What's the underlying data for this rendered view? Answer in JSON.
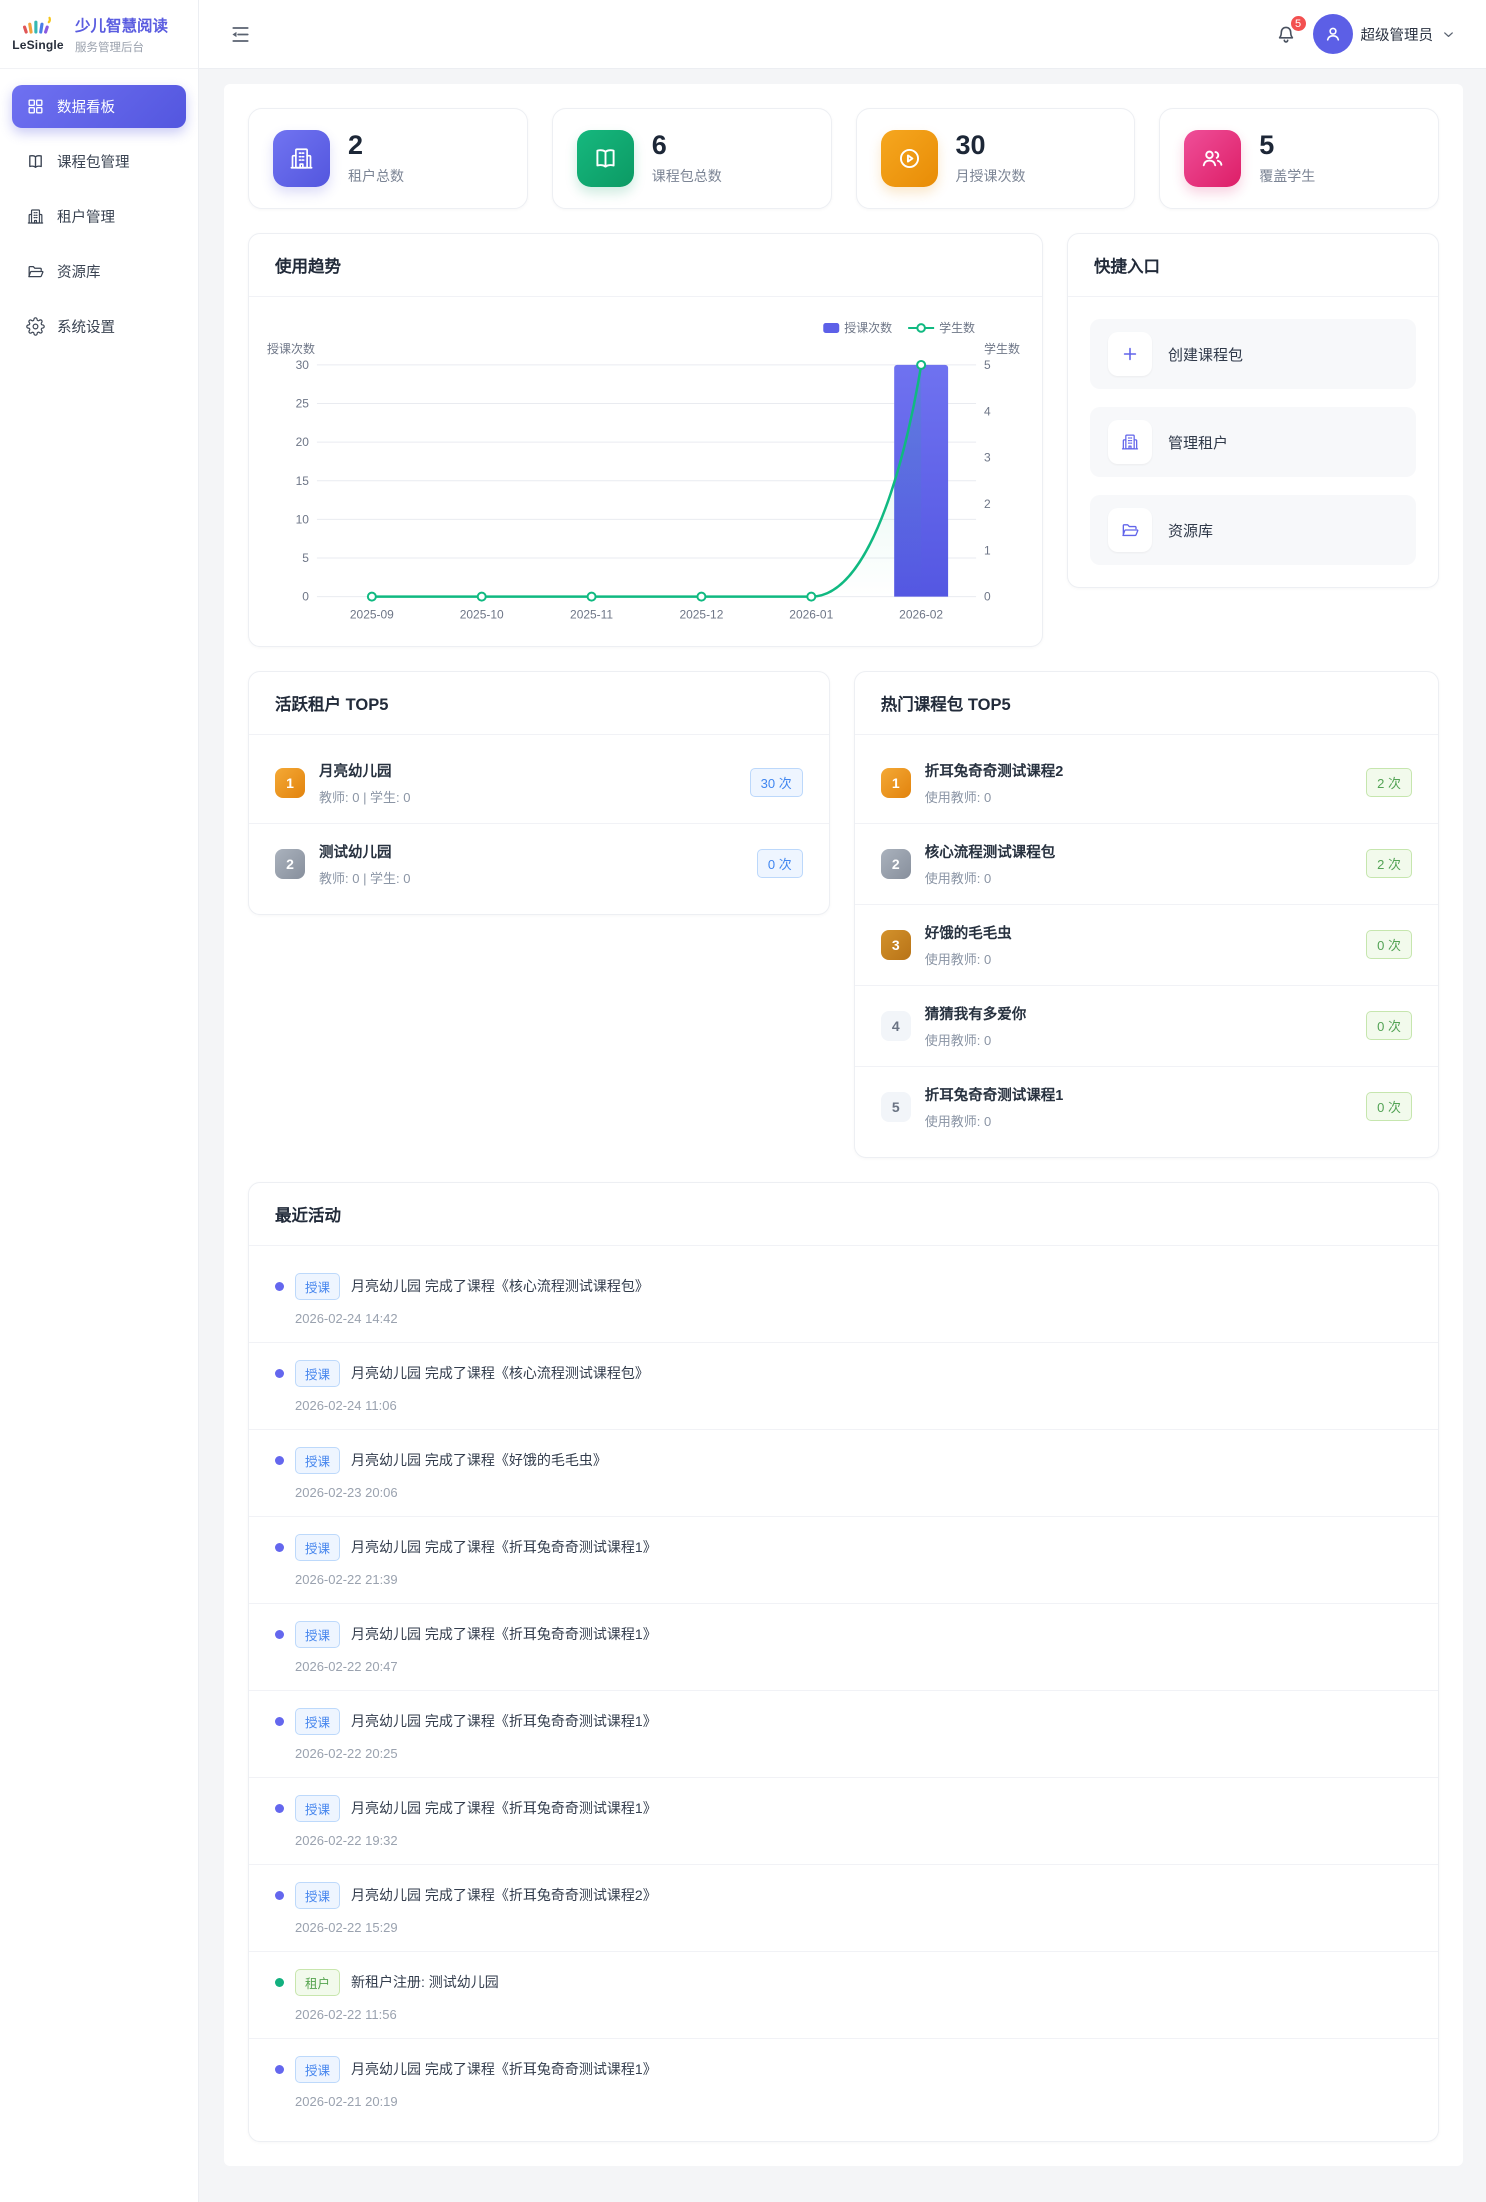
{
  "brand": {
    "logo_text": "LeSingle",
    "title": "少儿智慧阅读",
    "subtitle": "服务管理后台"
  },
  "sidebar": {
    "items": [
      {
        "id": "dashboard",
        "label": "数据看板",
        "icon": "dashboard-icon",
        "active": true
      },
      {
        "id": "packages",
        "label": "课程包管理",
        "icon": "book-icon",
        "active": false
      },
      {
        "id": "tenants",
        "label": "租户管理",
        "icon": "building-icon",
        "active": false
      },
      {
        "id": "resources",
        "label": "资源库",
        "icon": "folder-icon",
        "active": false
      },
      {
        "id": "settings",
        "label": "系统设置",
        "icon": "gear-icon",
        "active": false
      }
    ]
  },
  "header": {
    "notification_count": "5",
    "user_name": "超级管理员"
  },
  "stats": [
    {
      "value": "2",
      "label": "租户总数",
      "icon": "building-icon",
      "gradient": [
        "#7174f1",
        "#5356de"
      ]
    },
    {
      "value": "6",
      "label": "课程包总数",
      "icon": "book-icon",
      "gradient": [
        "#16b87e",
        "#0c9a64"
      ]
    },
    {
      "value": "30",
      "label": "月授课次数",
      "icon": "play-circle-icon",
      "gradient": [
        "#f6a71f",
        "#e88c06"
      ]
    },
    {
      "value": "5",
      "label": "覆盖学生",
      "icon": "students-icon",
      "gradient": [
        "#ef4f99",
        "#dd1e67"
      ]
    }
  ],
  "usage_trend": {
    "title": "使用趋势"
  },
  "chart_data": {
    "type": "combo",
    "categories": [
      "2025-09",
      "2025-10",
      "2025-11",
      "2025-12",
      "2026-01",
      "2026-02"
    ],
    "series": [
      {
        "name": "授课次数",
        "type": "bar",
        "values": [
          0,
          0,
          0,
          0,
          0,
          30
        ],
        "color": "#5d60e8",
        "y_axis": "left"
      },
      {
        "name": "学生数",
        "type": "line",
        "values": [
          0,
          0,
          0,
          0,
          0,
          5
        ],
        "color": "#10b981",
        "y_axis": "right"
      }
    ],
    "y_left": {
      "name": "授课次数",
      "min": 0,
      "max": 30,
      "step": 5
    },
    "y_right": {
      "name": "学生数",
      "min": 0,
      "max": 5,
      "step": 1
    },
    "legend_position": "top-right",
    "grid": "horizontal"
  },
  "quick_links": {
    "title": "快捷入口",
    "items": [
      {
        "label": "创建课程包",
        "icon": "plus-icon"
      },
      {
        "label": "管理租户",
        "icon": "building-icon"
      },
      {
        "label": "资源库",
        "icon": "folder-icon"
      }
    ]
  },
  "active_tenants": {
    "title": "活跃租户 TOP5",
    "items": [
      {
        "rank": "1",
        "name": "月亮幼儿园",
        "meta": "教师: 0 | 学生: 0",
        "count": "30 次"
      },
      {
        "rank": "2",
        "name": "测试幼儿园",
        "meta": "教师: 0 | 学生: 0",
        "count": "0 次"
      }
    ]
  },
  "hot_packages": {
    "title": "热门课程包 TOP5",
    "items": [
      {
        "rank": "1",
        "name": "折耳兔奇奇测试课程2",
        "meta": "使用教师: 0",
        "count": "2 次"
      },
      {
        "rank": "2",
        "name": "核心流程测试课程包",
        "meta": "使用教师: 0",
        "count": "2 次"
      },
      {
        "rank": "3",
        "name": "好饿的毛毛虫",
        "meta": "使用教师: 0",
        "count": "0 次"
      },
      {
        "rank": "4",
        "name": "猜猜我有多爱你",
        "meta": "使用教师: 0",
        "count": "0 次"
      },
      {
        "rank": "5",
        "name": "折耳兔奇奇测试课程1",
        "meta": "使用教师: 0",
        "count": "0 次"
      }
    ]
  },
  "recent_activities": {
    "title": "最近活动",
    "items": [
      {
        "tag": "授课",
        "type": "course",
        "text": "月亮幼儿园 完成了课程《核心流程测试课程包》",
        "time": "2026-02-24 14:42"
      },
      {
        "tag": "授课",
        "type": "course",
        "text": "月亮幼儿园 完成了课程《核心流程测试课程包》",
        "time": "2026-02-24 11:06"
      },
      {
        "tag": "授课",
        "type": "course",
        "text": "月亮幼儿园 完成了课程《好饿的毛毛虫》",
        "time": "2026-02-23 20:06"
      },
      {
        "tag": "授课",
        "type": "course",
        "text": "月亮幼儿园 完成了课程《折耳兔奇奇测试课程1》",
        "time": "2026-02-22 21:39"
      },
      {
        "tag": "授课",
        "type": "course",
        "text": "月亮幼儿园 完成了课程《折耳兔奇奇测试课程1》",
        "time": "2026-02-22 20:47"
      },
      {
        "tag": "授课",
        "type": "course",
        "text": "月亮幼儿园 完成了课程《折耳兔奇奇测试课程1》",
        "time": "2026-02-22 20:25"
      },
      {
        "tag": "授课",
        "type": "course",
        "text": "月亮幼儿园 完成了课程《折耳兔奇奇测试课程1》",
        "time": "2026-02-22 19:32"
      },
      {
        "tag": "授课",
        "type": "course",
        "text": "月亮幼儿园 完成了课程《折耳兔奇奇测试课程2》",
        "time": "2026-02-22 15:29"
      },
      {
        "tag": "租户",
        "type": "tenant",
        "text": "新租户注册: 测试幼儿园",
        "time": "2026-02-22 11:56"
      },
      {
        "tag": "授课",
        "type": "course",
        "text": "月亮幼儿园 完成了课程《折耳兔奇奇测试课程1》",
        "time": "2026-02-21 20:19"
      }
    ]
  }
}
